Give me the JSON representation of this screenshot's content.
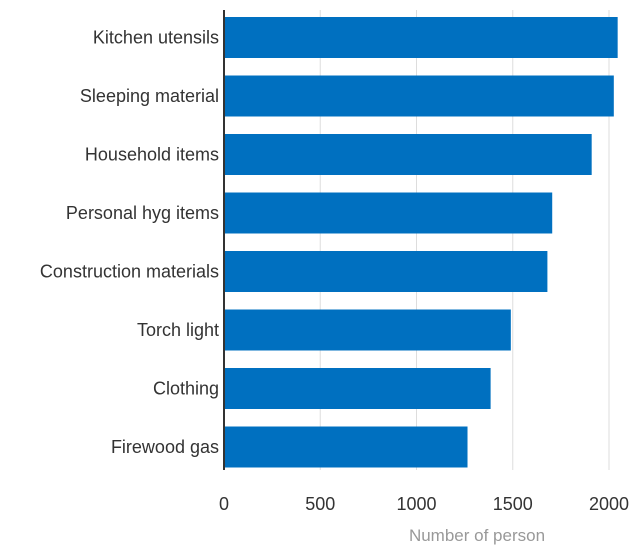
{
  "chart_data": {
    "type": "bar",
    "orientation": "horizontal",
    "categories": [
      "Kitchen utensils",
      "Sleeping material",
      "Household items",
      "Personal hyg items",
      "Construction materials",
      "Torch light",
      "Clothing",
      "Firewood gas"
    ],
    "values": [
      2045,
      2025,
      1910,
      1705,
      1680,
      1490,
      1385,
      1265
    ],
    "xlabel": "Number of person",
    "ylabel": "",
    "xlim": [
      0,
      2100
    ],
    "xticks": [
      0,
      500,
      1000,
      1500,
      2000
    ],
    "grid": true,
    "bar_color": "#0070c0"
  }
}
